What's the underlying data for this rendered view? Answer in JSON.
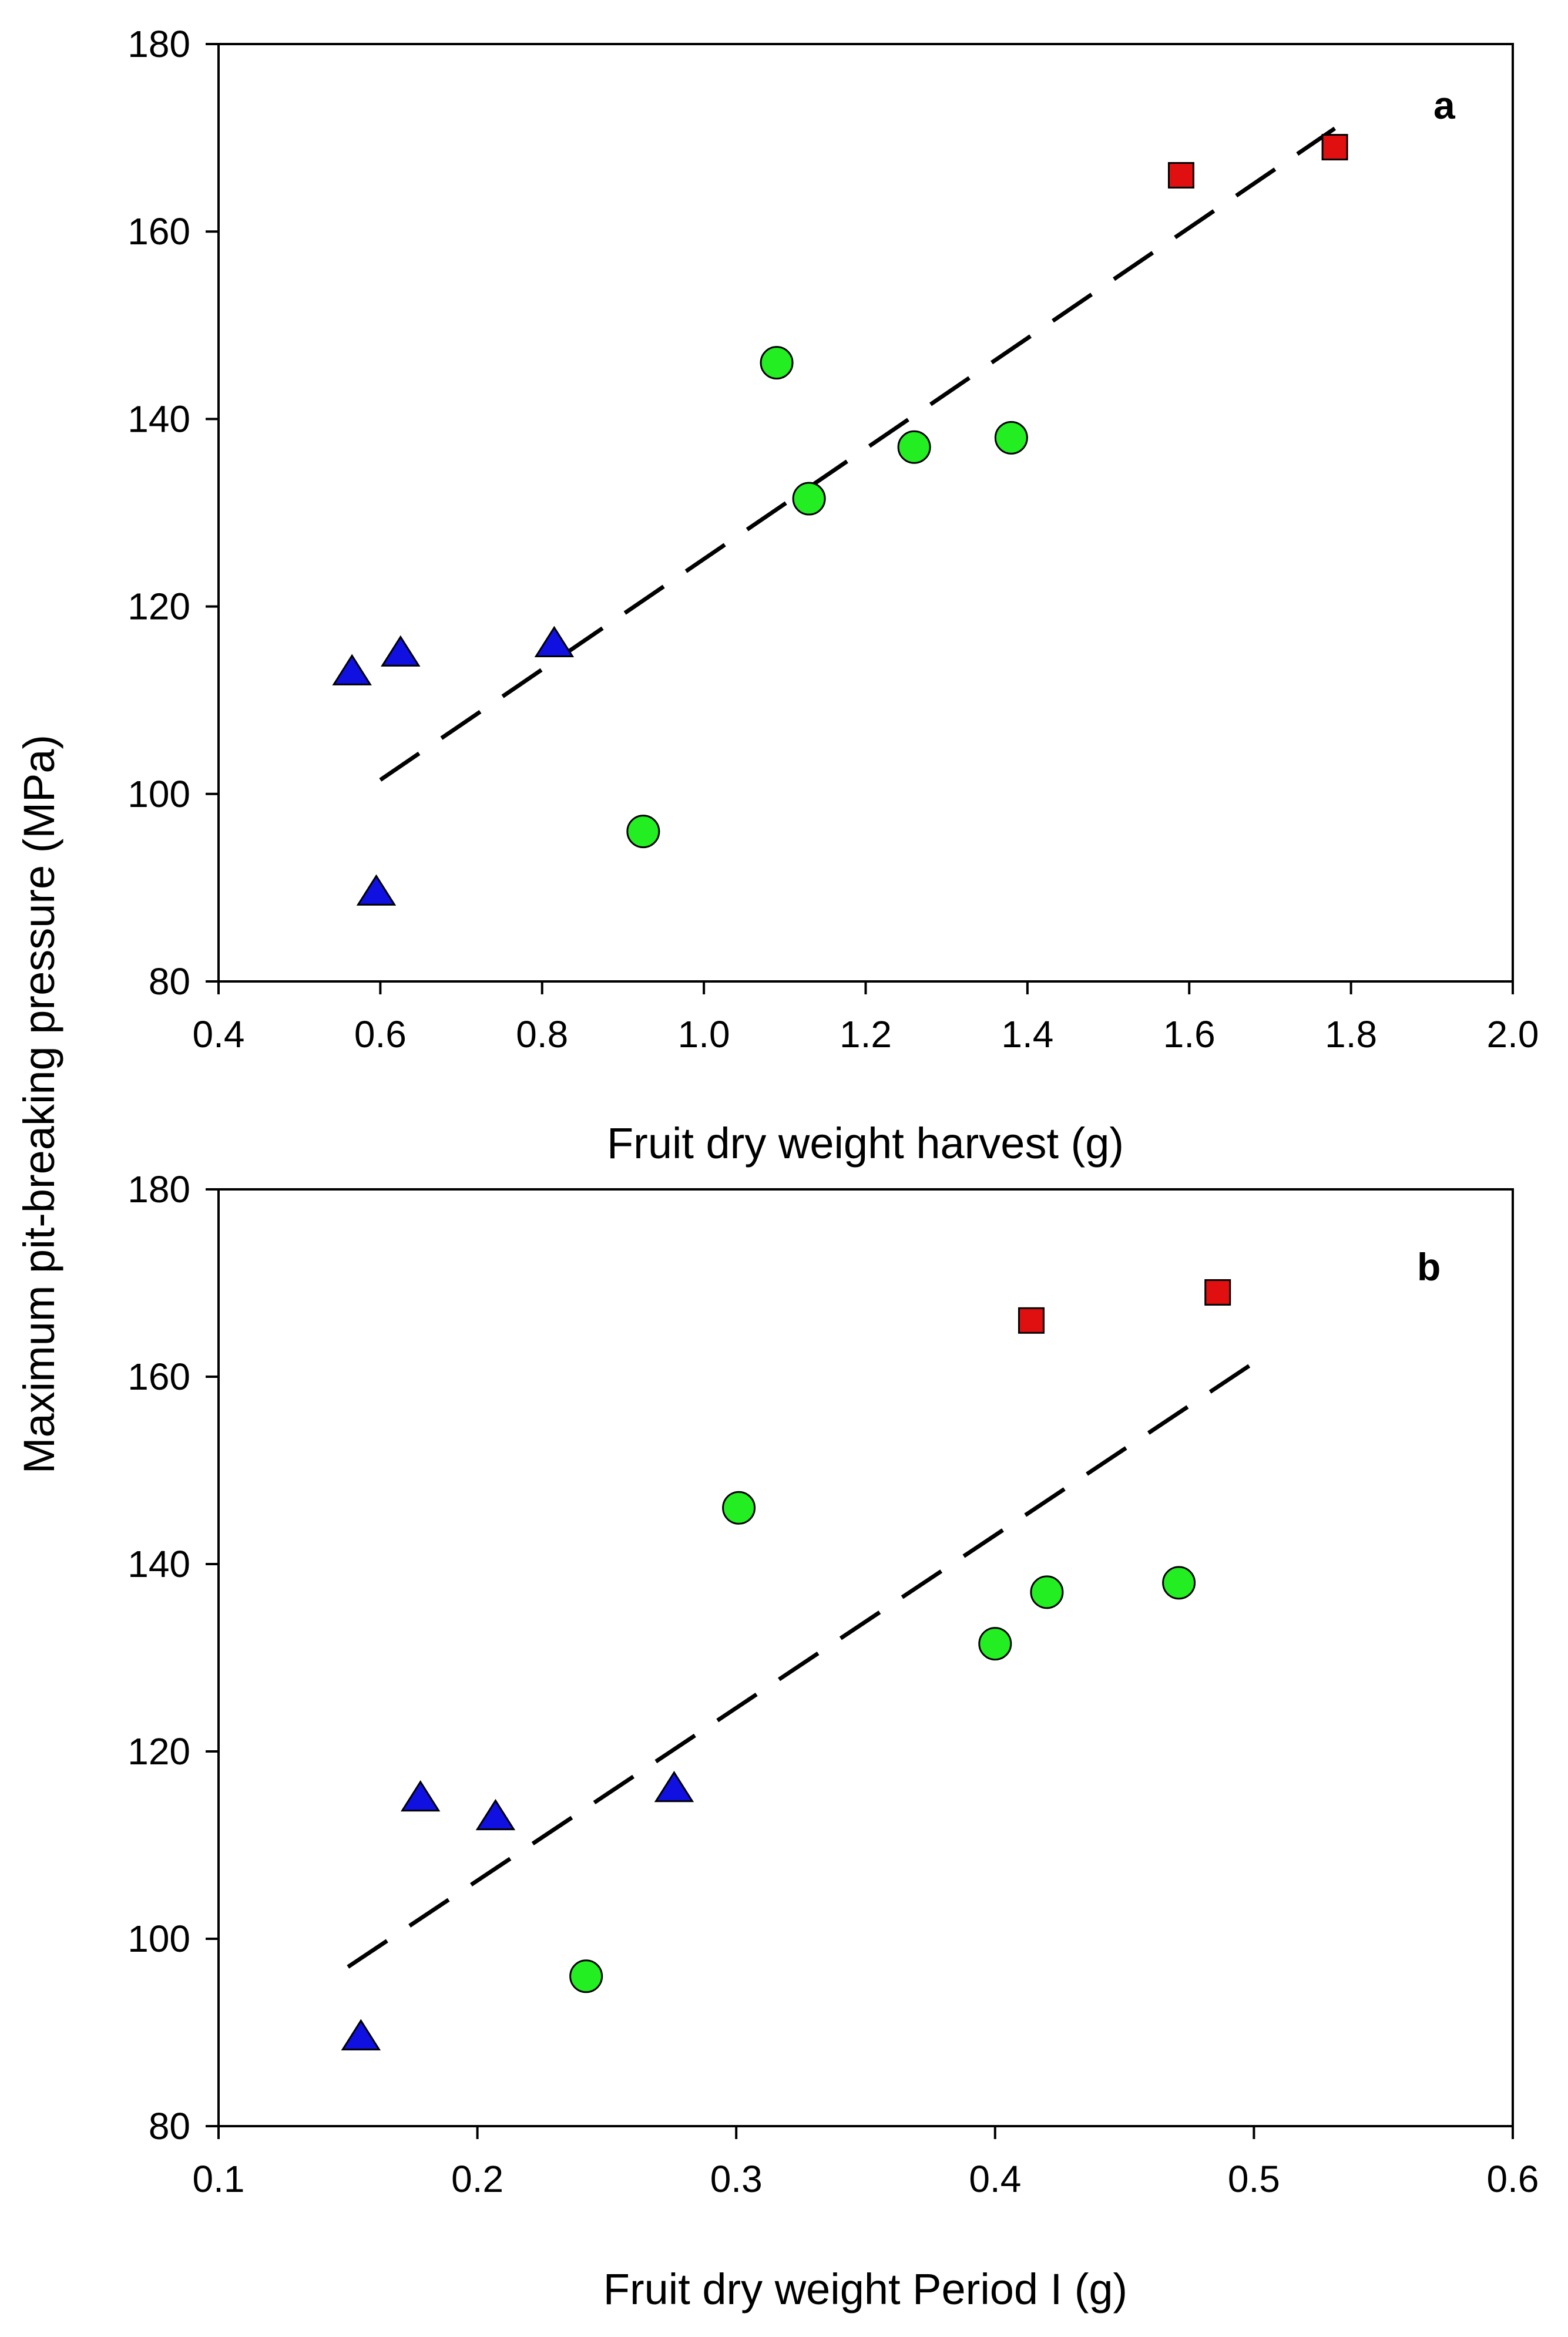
{
  "figure": {
    "shared_ylabel": "Maximum pit-breaking pressure (MPa)"
  },
  "colors": {
    "blue": "#1010E0",
    "green": "#22EE22",
    "red": "#E01010",
    "outline": "#000000",
    "line": "#000000"
  },
  "chart_data": [
    {
      "type": "scatter",
      "panel_label": "a",
      "xlabel": "Fruit dry weight harvest (g)",
      "ylabel": "Maximum pit-breaking pressure (MPa)",
      "xlim": [
        0.4,
        2.0
      ],
      "ylim": [
        80,
        180
      ],
      "xticks": [
        "0.4",
        "0.6",
        "0.8",
        "1.0",
        "1.2",
        "1.4",
        "1.6",
        "1.8",
        "2.0"
      ],
      "yticks": [
        "80",
        "100",
        "120",
        "140",
        "160",
        "180"
      ],
      "series": [
        {
          "name": "blue-triangles",
          "marker": "triangle",
          "color": "blue",
          "points": [
            [
              0.565,
              113
            ],
            [
              0.625,
              115
            ],
            [
              0.595,
              89.5
            ],
            [
              0.815,
              116
            ]
          ]
        },
        {
          "name": "green-circles",
          "marker": "circle",
          "color": "green",
          "points": [
            [
              0.925,
              96
            ],
            [
              1.09,
              146
            ],
            [
              1.13,
              131.5
            ],
            [
              1.26,
              137
            ],
            [
              1.38,
              138
            ]
          ]
        },
        {
          "name": "red-squares",
          "marker": "square",
          "color": "red",
          "points": [
            [
              1.59,
              166
            ],
            [
              1.78,
              169
            ]
          ]
        }
      ],
      "regression_line": {
        "style": "dashed",
        "x": [
          0.6,
          1.78
        ],
        "y": [
          101.5,
          171
        ]
      }
    },
    {
      "type": "scatter",
      "panel_label": "b",
      "xlabel": "Fruit dry weight Period I (g)",
      "ylabel": "Maximum pit-breaking pressure (MPa)",
      "xlim": [
        0.1,
        0.6
      ],
      "ylim": [
        80,
        180
      ],
      "xticks": [
        "0.1",
        "0.2",
        "0.3",
        "0.4",
        "0.5",
        "0.6"
      ],
      "yticks": [
        "80",
        "100",
        "120",
        "140",
        "160",
        "180"
      ],
      "series": [
        {
          "name": "blue-triangles",
          "marker": "triangle",
          "color": "blue",
          "points": [
            [
              0.155,
              89.5
            ],
            [
              0.178,
              115
            ],
            [
              0.207,
              113
            ],
            [
              0.276,
              116
            ]
          ]
        },
        {
          "name": "green-circles",
          "marker": "circle",
          "color": "green",
          "points": [
            [
              0.242,
              96
            ],
            [
              0.301,
              146
            ],
            [
              0.4,
              131.5
            ],
            [
              0.42,
              137
            ],
            [
              0.471,
              138
            ]
          ]
        },
        {
          "name": "red-squares",
          "marker": "square",
          "color": "red",
          "points": [
            [
              0.414,
              166
            ],
            [
              0.486,
              169
            ]
          ]
        }
      ],
      "regression_line": {
        "style": "dashed",
        "x": [
          0.15,
          0.5
        ],
        "y": [
          97,
          161.5
        ]
      }
    }
  ]
}
